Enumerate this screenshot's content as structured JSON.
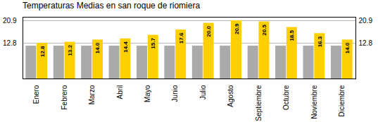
{
  "chart_data": {
    "type": "bar",
    "title": "Temperaturas Medias en san roque de riomiera",
    "categories": [
      "Enero",
      "Febrero",
      "Marzo",
      "Abril",
      "Mayo",
      "Junio",
      "Julio",
      "Agosto",
      "Septiembre",
      "Octubre",
      "Noviembre",
      "Diciembre"
    ],
    "series": [
      {
        "color": "#AAAAAA",
        "values": [
          11.8,
          11.8,
          11.8,
          11.8,
          11.8,
          11.8,
          11.8,
          11.8,
          11.8,
          11.8,
          11.8,
          11.8
        ]
      },
      {
        "color": "#FFD000",
        "values": [
          12.8,
          13.2,
          14.0,
          14.4,
          15.7,
          17.6,
          20.0,
          20.9,
          20.5,
          18.5,
          16.3,
          14.0
        ],
        "data_labels": true,
        "value_labels": [
          "12.8",
          "13.2",
          "14.0",
          "14.4",
          "15.7",
          "17.6",
          "20.0",
          "20.9",
          "20.5",
          "18.5",
          "16.3",
          "14.0"
        ]
      }
    ],
    "ylim": [
      0,
      22.154
    ],
    "yticks": [
      12.8,
      20.9
    ],
    "y2lim": [
      0,
      22.154
    ],
    "y2ticks": [
      12.8,
      20.9
    ],
    "grid": true
  }
}
